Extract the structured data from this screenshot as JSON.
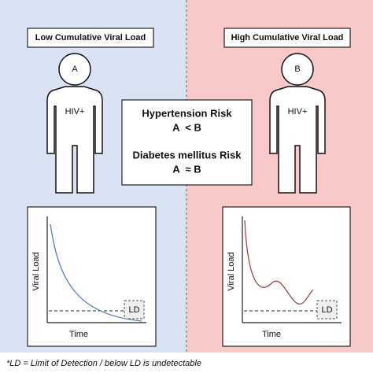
{
  "panels": [
    {
      "label": "Low Cumulative Viral Load",
      "person": "A",
      "status": "HIV+",
      "chart": {
        "y_label": "Viral Load",
        "x_label": "Time",
        "threshold": "LD"
      }
    },
    {
      "label": "High Cumulative Viral Load",
      "person": "B",
      "status": "HIV+",
      "chart": {
        "y_label": "Viral Load",
        "x_label": "Time",
        "threshold": "LD"
      }
    }
  ],
  "comparison": [
    {
      "title": "Hypertension Risk",
      "relation": "A  < B"
    },
    {
      "title": "Diabetes mellitus Risk",
      "relation": "A  ≈ B"
    }
  ],
  "footnote": "*LD = Limit of Detection / below LD is undetectable"
}
